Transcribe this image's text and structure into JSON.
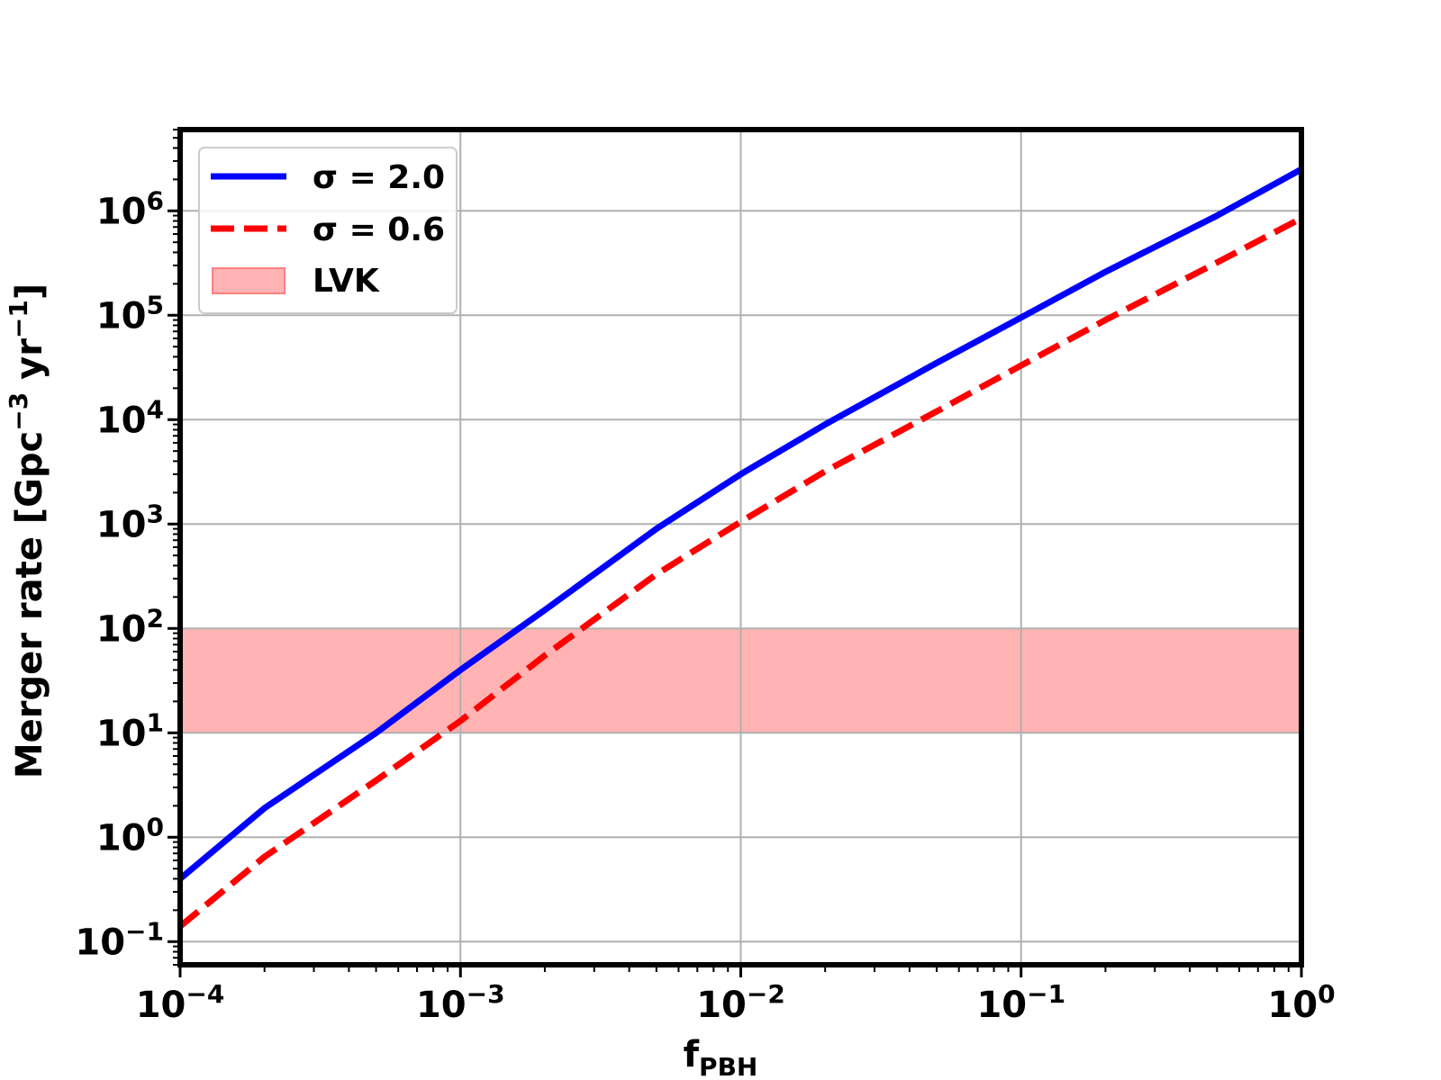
{
  "chart_data": {
    "type": "line",
    "xscale": "log",
    "yscale": "log",
    "xlim": [
      0.0001,
      1
    ],
    "ylim": [
      0.06,
      6000000
    ],
    "grid": true,
    "legend_position": "upper-left",
    "x_ticks": [
      {
        "base": "10",
        "exp": "−4",
        "value": 0.0001
      },
      {
        "base": "10",
        "exp": "−3",
        "value": 0.001
      },
      {
        "base": "10",
        "exp": "−2",
        "value": 0.01
      },
      {
        "base": "10",
        "exp": "−1",
        "value": 0.1
      },
      {
        "base": "10",
        "exp": "0",
        "value": 1
      }
    ],
    "y_ticks": [
      {
        "base": "10",
        "exp": "−1",
        "value": 0.1
      },
      {
        "base": "10",
        "exp": "0",
        "value": 1
      },
      {
        "base": "10",
        "exp": "1",
        "value": 10
      },
      {
        "base": "10",
        "exp": "2",
        "value": 100
      },
      {
        "base": "10",
        "exp": "3",
        "value": 1000
      },
      {
        "base": "10",
        "exp": "4",
        "value": 10000
      },
      {
        "base": "10",
        "exp": "5",
        "value": 100000
      },
      {
        "base": "10",
        "exp": "6",
        "value": 1000000
      }
    ],
    "xlabel": {
      "main": "f",
      "sub": "PBH"
    },
    "ylabel": {
      "part1": "Merger rate [Gpc",
      "sup1": "−3",
      "part2": " yr",
      "sup2": "−1",
      "part3": "]"
    },
    "series": [
      {
        "name": "σ = 2.0",
        "color": "#0000ff",
        "style": "solid",
        "x": [
          0.0001,
          0.0002,
          0.0005,
          0.001,
          0.002,
          0.005,
          0.01,
          0.02,
          0.05,
          0.1,
          0.2,
          0.5,
          1
        ],
        "y": [
          0.4,
          1.9,
          10,
          40,
          150,
          900,
          3000,
          9000,
          35000,
          95000,
          260000,
          900000,
          2500000
        ]
      },
      {
        "name": "σ = 0.6",
        "color": "#ff0000",
        "style": "dashed",
        "x": [
          0.0001,
          0.0002,
          0.0005,
          0.001,
          0.002,
          0.005,
          0.01,
          0.02,
          0.05,
          0.1,
          0.2,
          0.5,
          1
        ],
        "y": [
          0.14,
          0.65,
          3.5,
          13,
          55,
          330,
          1050,
          3200,
          12000,
          33000,
          90000,
          320000,
          850000
        ]
      }
    ],
    "bands": [
      {
        "name": "LVK",
        "color": "#ff8080",
        "alpha": 0.6,
        "ymin": 10,
        "ymax": 100
      }
    ]
  }
}
